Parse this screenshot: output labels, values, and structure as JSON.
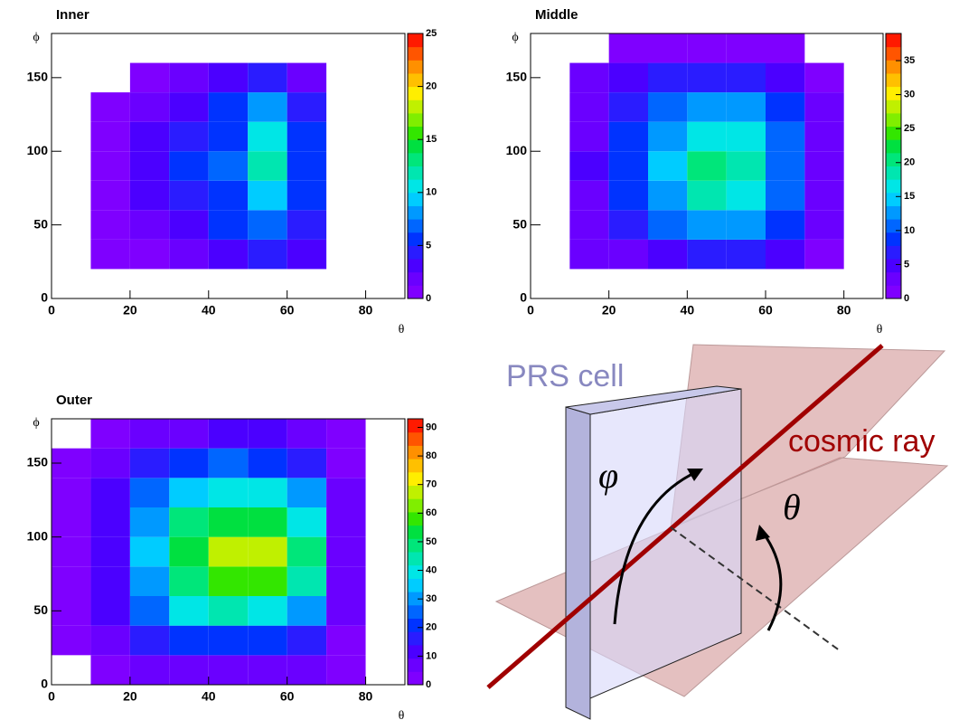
{
  "chart_data": [
    {
      "type": "heatmap",
      "title": "Inner",
      "x_label": "θ",
      "y_label": "ϕ",
      "xlim": [
        0,
        90
      ],
      "xticks": [
        0,
        20,
        40,
        60,
        80
      ],
      "ylim": [
        0,
        180
      ],
      "yticks": [
        0,
        50,
        100,
        150
      ],
      "zlim": [
        0,
        25
      ],
      "zticks": [
        0,
        5,
        10,
        15,
        20,
        25
      ],
      "xbins": [
        0,
        10,
        20,
        30,
        40,
        50,
        60,
        70,
        80,
        90
      ],
      "ybins": [
        0,
        20,
        40,
        60,
        80,
        100,
        120,
        140,
        160,
        180
      ],
      "z": [
        [
          0,
          0,
          0,
          0,
          0,
          0,
          0,
          0,
          0
        ],
        [
          0,
          1,
          1,
          2,
          3,
          4,
          3,
          0,
          0
        ],
        [
          0,
          1,
          2,
          3,
          5,
          7,
          4,
          0,
          0
        ],
        [
          0,
          1,
          3,
          4,
          6,
          9,
          5,
          0,
          0
        ],
        [
          0,
          1,
          3,
          5,
          7,
          12,
          6,
          0,
          0
        ],
        [
          0,
          1,
          3,
          4,
          6,
          10,
          5,
          0,
          0
        ],
        [
          0,
          1,
          2,
          3,
          5,
          8,
          4,
          0,
          0
        ],
        [
          0,
          0,
          1,
          2,
          3,
          4,
          2,
          0,
          0
        ],
        [
          0,
          0,
          0,
          0,
          0,
          0,
          0,
          0,
          0
        ]
      ]
    },
    {
      "type": "heatmap",
      "title": "Middle",
      "x_label": "θ",
      "y_label": "ϕ",
      "xlim": [
        0,
        90
      ],
      "xticks": [
        0,
        20,
        40,
        60,
        80
      ],
      "ylim": [
        0,
        180
      ],
      "yticks": [
        0,
        50,
        100,
        150
      ],
      "zlim": [
        0,
        39
      ],
      "zticks": [
        0,
        5,
        10,
        15,
        20,
        25,
        30,
        35
      ],
      "xbins": [
        0,
        10,
        20,
        30,
        40,
        50,
        60,
        70,
        80,
        90
      ],
      "ybins": [
        0,
        20,
        40,
        60,
        80,
        100,
        120,
        140,
        160,
        180
      ],
      "z": [
        [
          0,
          0,
          0,
          0,
          0,
          0,
          0,
          0,
          0
        ],
        [
          0,
          2,
          3,
          5,
          6,
          6,
          4,
          1,
          0
        ],
        [
          0,
          3,
          6,
          10,
          13,
          13,
          8,
          2,
          0
        ],
        [
          0,
          3,
          8,
          13,
          18,
          17,
          10,
          2,
          0
        ],
        [
          0,
          4,
          9,
          15,
          21,
          19,
          11,
          2,
          0
        ],
        [
          0,
          3,
          8,
          13,
          17,
          16,
          10,
          2,
          0
        ],
        [
          0,
          3,
          7,
          10,
          13,
          12,
          8,
          2,
          0
        ],
        [
          0,
          2,
          4,
          6,
          7,
          7,
          5,
          1,
          0
        ],
        [
          0,
          0,
          1,
          1,
          1,
          1,
          1,
          0,
          0
        ]
      ]
    },
    {
      "type": "heatmap",
      "title": "Outer",
      "x_label": "θ",
      "y_label": "ϕ",
      "xlim": [
        0,
        90
      ],
      "xticks": [
        0,
        20,
        40,
        60,
        80
      ],
      "ylim": [
        0,
        180
      ],
      "yticks": [
        0,
        50,
        100,
        150
      ],
      "zlim": [
        0,
        93
      ],
      "zticks": [
        0,
        10,
        20,
        30,
        40,
        50,
        60,
        70,
        80,
        90
      ],
      "xbins": [
        0,
        10,
        20,
        30,
        40,
        50,
        60,
        70,
        80,
        90
      ],
      "ybins": [
        0,
        20,
        40,
        60,
        80,
        100,
        120,
        140,
        160,
        180
      ],
      "z": [
        [
          0,
          3,
          6,
          8,
          9,
          9,
          7,
          2,
          0
        ],
        [
          1,
          8,
          15,
          20,
          22,
          22,
          17,
          4,
          0
        ],
        [
          1,
          10,
          25,
          38,
          42,
          40,
          30,
          6,
          0
        ],
        [
          1,
          12,
          32,
          50,
          60,
          58,
          42,
          8,
          0
        ],
        [
          1,
          12,
          35,
          55,
          68,
          66,
          48,
          8,
          0
        ],
        [
          1,
          12,
          32,
          48,
          55,
          52,
          40,
          7,
          0
        ],
        [
          1,
          10,
          26,
          37,
          40,
          38,
          30,
          6,
          0
        ],
        [
          1,
          8,
          16,
          22,
          24,
          23,
          18,
          4,
          0
        ],
        [
          0,
          3,
          6,
          9,
          10,
          10,
          7,
          2,
          0
        ]
      ]
    }
  ],
  "palette": [
    "#7f00ff",
    "#6a00ff",
    "#4b00ff",
    "#2a1cff",
    "#0033ff",
    "#0066ff",
    "#0099ff",
    "#00ccff",
    "#00e6e6",
    "#00e6b0",
    "#00e67a",
    "#00e040",
    "#33e600",
    "#80ee00",
    "#c0f000",
    "#ffee00",
    "#ffc000",
    "#ff9000",
    "#ff5500",
    "#ff1a00"
  ],
  "diagram": {
    "labels": [
      "PRS cell",
      "cosmic ray",
      "φ",
      "θ"
    ]
  }
}
